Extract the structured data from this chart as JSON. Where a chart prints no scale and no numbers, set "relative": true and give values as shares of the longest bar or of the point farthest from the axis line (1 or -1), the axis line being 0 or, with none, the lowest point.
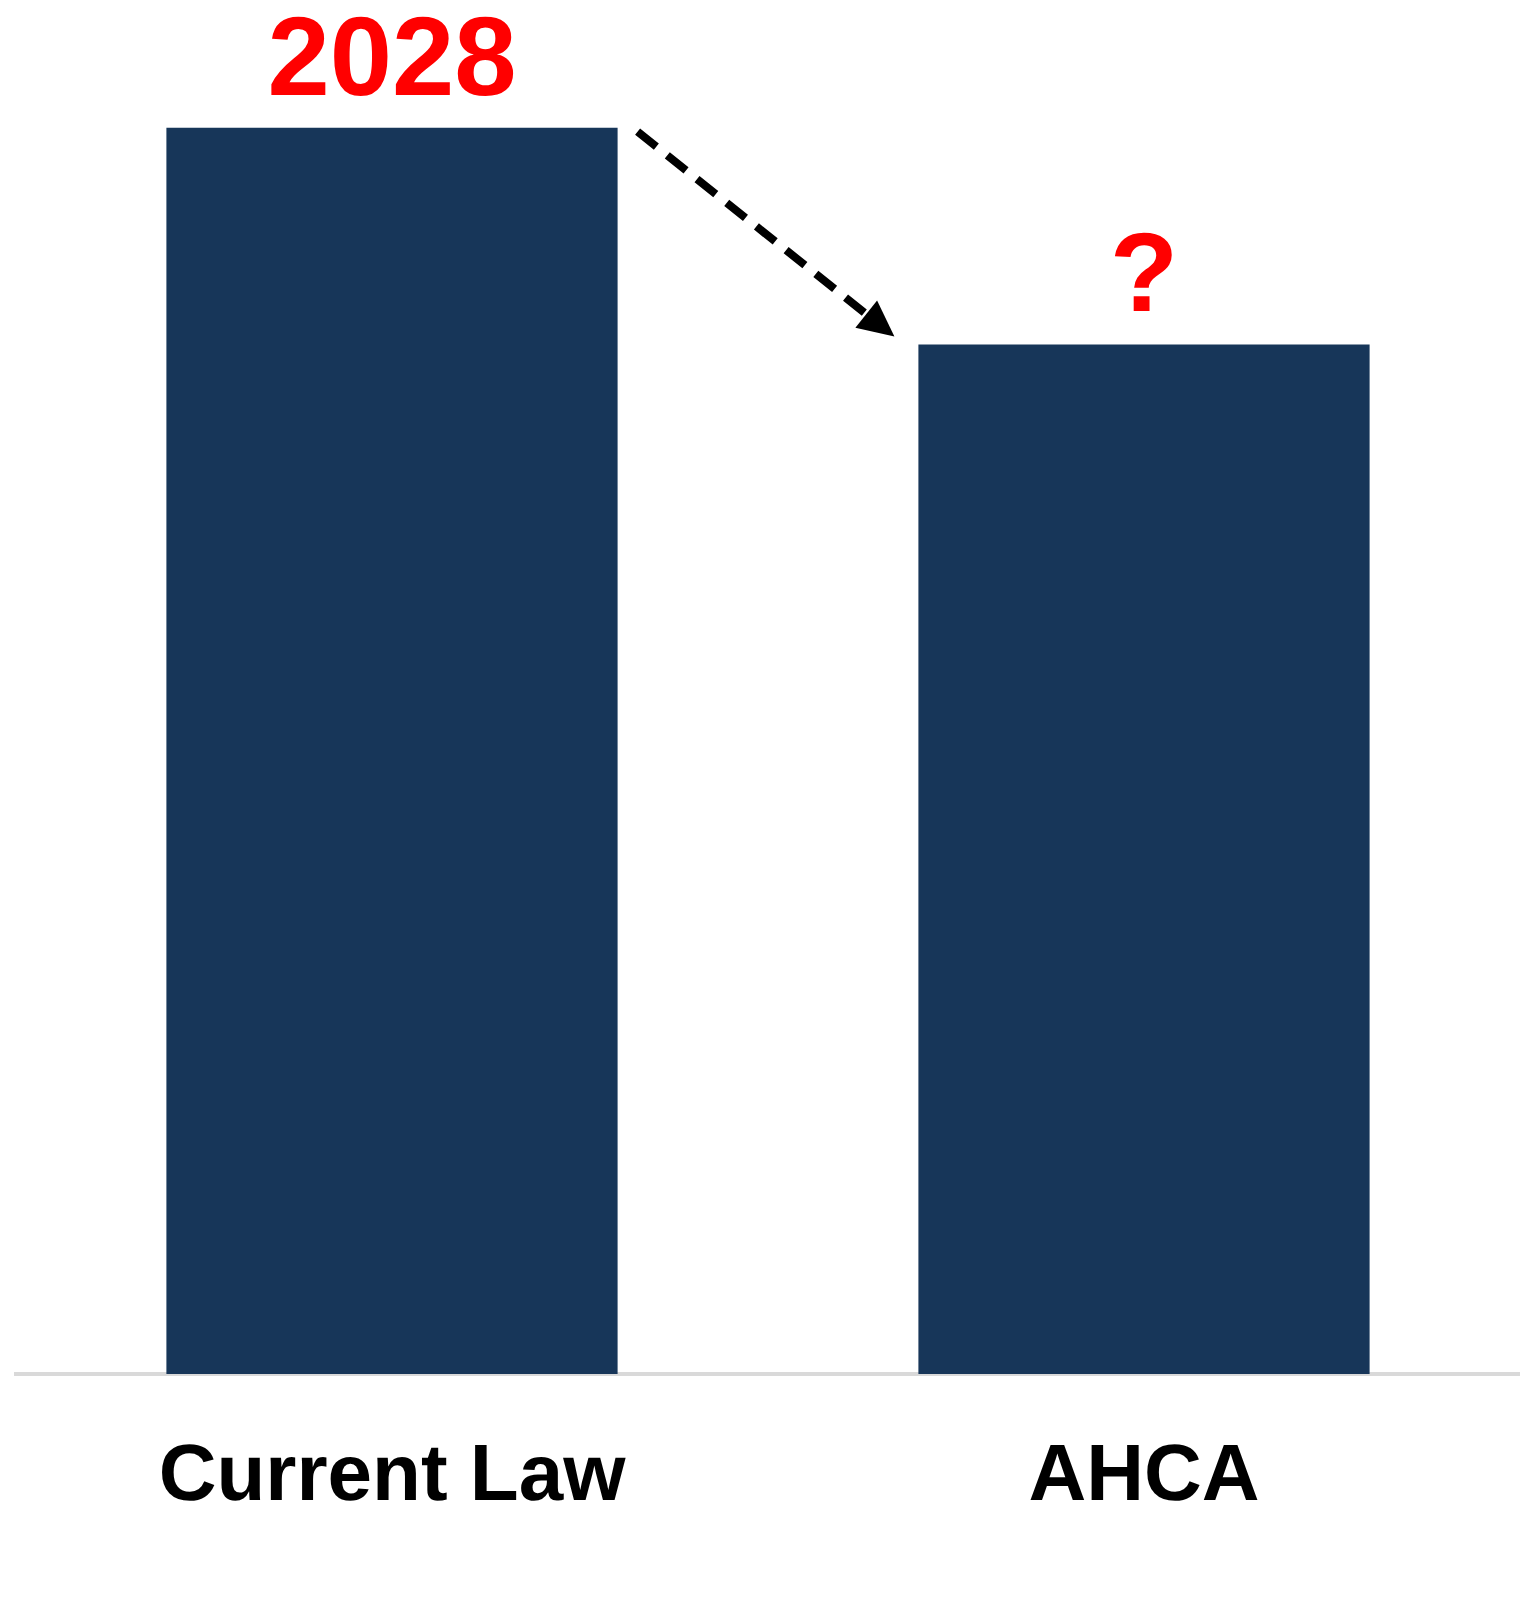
{
  "chart_data": {
    "type": "bar",
    "relative": true,
    "categories": [
      "Current Law",
      "AHCA"
    ],
    "values": [
      1,
      0.826
    ],
    "color": "#173659",
    "grid": false,
    "legend": false,
    "annotations": [
      {
        "text": "2028",
        "x": "Current Law",
        "y": 1
      },
      {
        "text": "?",
        "x": "AHCA",
        "y": 0.826
      }
    ]
  }
}
